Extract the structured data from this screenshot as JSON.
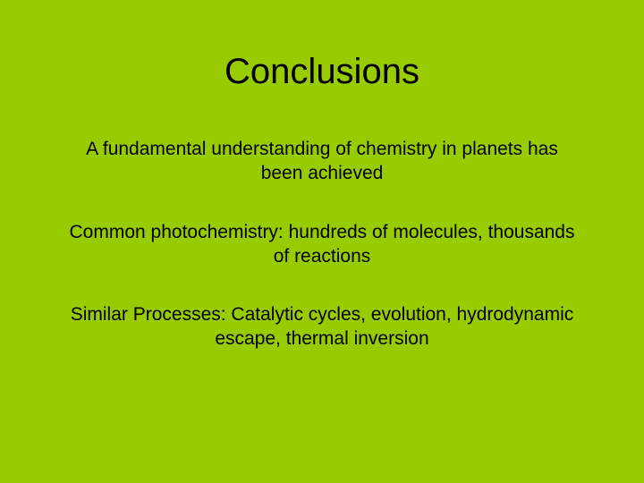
{
  "slide": {
    "title": "Conclusions",
    "bullets": [
      "A fundamental understanding of chemistry in planets has been achieved",
      "Common photochemistry: hundreds of molecules, thousands of reactions",
      "Similar Processes: Catalytic cycles, evolution, hydrodynamic escape, thermal inversion"
    ],
    "background_color": "#99cc00",
    "text_color": "#000000",
    "title_fontsize": 40,
    "body_fontsize": 21,
    "font_family": "Arial"
  }
}
